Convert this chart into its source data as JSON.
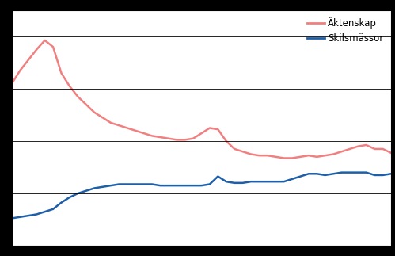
{
  "title": "",
  "legend_labels": [
    "Äktenskap",
    "Skilsmässor"
  ],
  "line1_color": "#F08080",
  "line2_color": "#1E5FA8",
  "background_color": "#ffffff",
  "grid_color": "#000000",
  "outer_bg": "#000000",
  "years": [
    1965,
    1966,
    1967,
    1968,
    1969,
    1970,
    1971,
    1972,
    1973,
    1974,
    1975,
    1976,
    1977,
    1978,
    1979,
    1980,
    1981,
    1982,
    1983,
    1984,
    1985,
    1986,
    1987,
    1988,
    1989,
    1990,
    1991,
    1992,
    1993,
    1994,
    1995,
    1996,
    1997,
    1998,
    1999,
    2000,
    2001,
    2002,
    2003,
    2004,
    2005,
    2006,
    2007,
    2008,
    2009,
    2010,
    2011
  ],
  "aktenskap": [
    62000,
    67000,
    71000,
    75000,
    78500,
    76000,
    66000,
    61000,
    57000,
    54000,
    51000,
    49000,
    47000,
    46000,
    45000,
    44000,
    43000,
    42000,
    41500,
    41000,
    40500,
    40500,
    41000,
    43000,
    45000,
    44500,
    40000,
    37000,
    36000,
    35000,
    34500,
    34500,
    34000,
    33500,
    33500,
    34000,
    34500,
    34000,
    34500,
    35000,
    36000,
    37000,
    38000,
    38500,
    37000,
    37000,
    35500
  ],
  "skilsmassor": [
    10500,
    11000,
    11500,
    12000,
    13000,
    14000,
    16500,
    18500,
    20000,
    21000,
    22000,
    22500,
    23000,
    23500,
    23500,
    23500,
    23500,
    23500,
    23000,
    23000,
    23000,
    23000,
    23000,
    23000,
    23500,
    26500,
    24500,
    24000,
    24000,
    24500,
    24500,
    24500,
    24500,
    24500,
    25500,
    26500,
    27500,
    27500,
    27000,
    27500,
    28000,
    28000,
    28000,
    28000,
    27000,
    27000,
    27500
  ],
  "ylim": [
    0,
    90000
  ],
  "yticks": [
    0,
    20000,
    40000,
    60000,
    80000
  ],
  "xlim": [
    1965,
    2011
  ],
  "linewidth": 1.8,
  "figwidth": 4.99,
  "figheight": 3.23,
  "dpi": 100
}
